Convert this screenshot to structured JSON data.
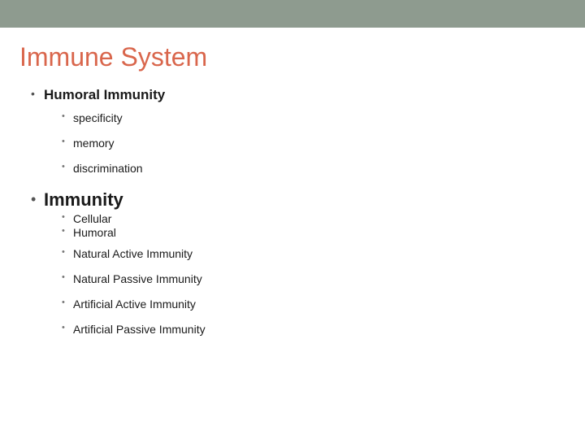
{
  "colors": {
    "top_bar": "#8e9b8f",
    "title": "#d9664c",
    "text": "#1a1a1a",
    "bullet": "#555555",
    "sub_bullet": "#777777",
    "background": "#ffffff"
  },
  "typography": {
    "title_fontsize": 32,
    "level1_fontsize": 17,
    "level1_big_fontsize": 22,
    "level2_fontsize": 14,
    "font_family": "Arial"
  },
  "slide": {
    "title": "Immune System",
    "sections": [
      {
        "heading": "Humoral Immunity",
        "style": "normal",
        "items": [
          {
            "text": "specificity"
          },
          {
            "text": "memory"
          },
          {
            "text": "discrimination"
          }
        ]
      },
      {
        "heading": "Immunity",
        "style": "big",
        "tight_items": [
          {
            "text": "Cellular"
          },
          {
            "text": "Humoral"
          }
        ],
        "items": [
          {
            "text": "Natural Active Immunity"
          },
          {
            "text": "Natural Passive Immunity"
          },
          {
            "text": "Artificial Active Immunity"
          },
          {
            "text": "Artificial Passive Immunity"
          }
        ]
      }
    ]
  }
}
